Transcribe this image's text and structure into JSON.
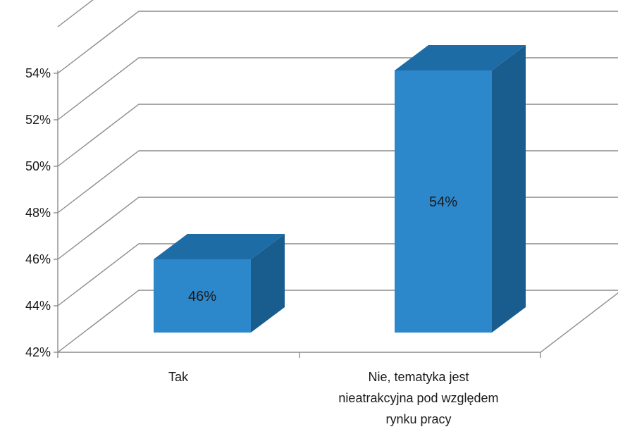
{
  "chart_data": {
    "type": "bar",
    "style": "3d-column",
    "categories": [
      "Tak",
      "Nie, tematyka jest nieatrakcyjna pod względem rynku pracy"
    ],
    "category_lines": [
      [
        "Tak"
      ],
      [
        "Nie, tematyka jest",
        "nieatrakcyjna pod względem",
        "rynku pracy"
      ]
    ],
    "values": [
      46,
      54
    ],
    "data_labels": [
      "46%",
      "54%"
    ],
    "ylim": [
      42,
      56
    ],
    "yticks": [
      42,
      44,
      46,
      48,
      50,
      52,
      54
    ],
    "ytick_labels": [
      "42%",
      "44%",
      "46%",
      "48%",
      "50%",
      "52%",
      "54%"
    ],
    "grid": true,
    "legend": "none",
    "colors": {
      "bar_front": "#2C87CB",
      "bar_top": "#1E6CA6",
      "bar_side": "#195C8E",
      "gridline": "#8C8C8C",
      "axis": "#8C8C8C",
      "text": "#1A1A1A"
    }
  }
}
